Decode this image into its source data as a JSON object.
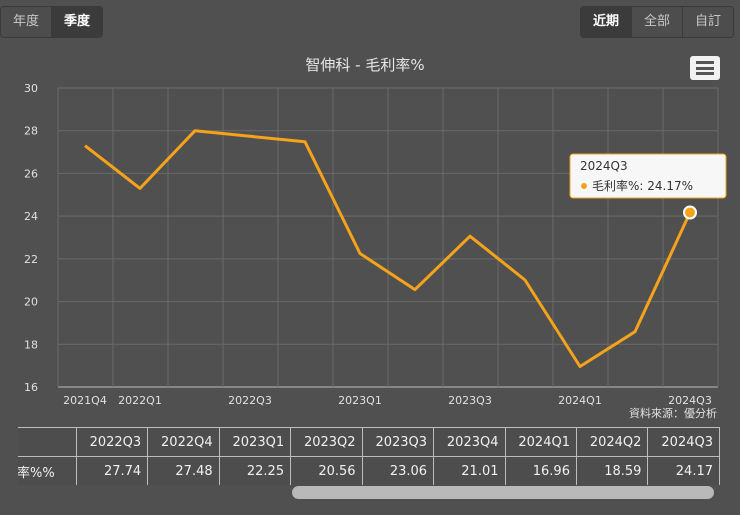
{
  "left_toggle": [
    {
      "label": "年度",
      "active": false
    },
    {
      "label": "季度",
      "active": true
    }
  ],
  "right_toggle": [
    {
      "label": "近期",
      "active": true
    },
    {
      "label": "全部",
      "active": false
    },
    {
      "label": "自訂",
      "active": false
    }
  ],
  "source_label": "資料來源：優分析",
  "colors": {
    "line": "#f5a31a",
    "background": "#505050",
    "grid": "#6a6a6a"
  },
  "chart_data": {
    "type": "line",
    "title": "智伸科 - 毛利率%",
    "categories": [
      "2021Q4",
      "2022Q1",
      "2022Q2",
      "2022Q3",
      "2022Q4",
      "2023Q1",
      "2023Q2",
      "2023Q3",
      "2023Q4",
      "2024Q1",
      "2024Q2",
      "2024Q3"
    ],
    "x_tick_labels": [
      "2021Q4",
      "2022Q1",
      "",
      "2022Q3",
      "",
      "2023Q1",
      "",
      "2023Q3",
      "",
      "2024Q1",
      "",
      "2024Q3"
    ],
    "series": [
      {
        "name": "毛利率%",
        "values": [
          27.3,
          25.3,
          28.0,
          27.74,
          27.48,
          22.25,
          20.56,
          23.06,
          21.01,
          16.96,
          18.59,
          24.17
        ]
      }
    ],
    "ylim": [
      16,
      30
    ],
    "yticks": [
      16,
      18,
      20,
      22,
      24,
      26,
      28,
      30
    ],
    "grid": true,
    "tooltip": {
      "title": "2024Q3",
      "label": "毛利率%: 24.17%"
    }
  },
  "table": {
    "row_label": "毛利率%%",
    "headers": [
      "2022Q3",
      "2022Q4",
      "2023Q1",
      "2023Q2",
      "2023Q3",
      "2023Q4",
      "2024Q1",
      "2024Q2",
      "2024Q3"
    ],
    "values": [
      "27.74",
      "27.48",
      "22.25",
      "20.56",
      "23.06",
      "21.01",
      "16.96",
      "18.59",
      "24.17"
    ]
  }
}
